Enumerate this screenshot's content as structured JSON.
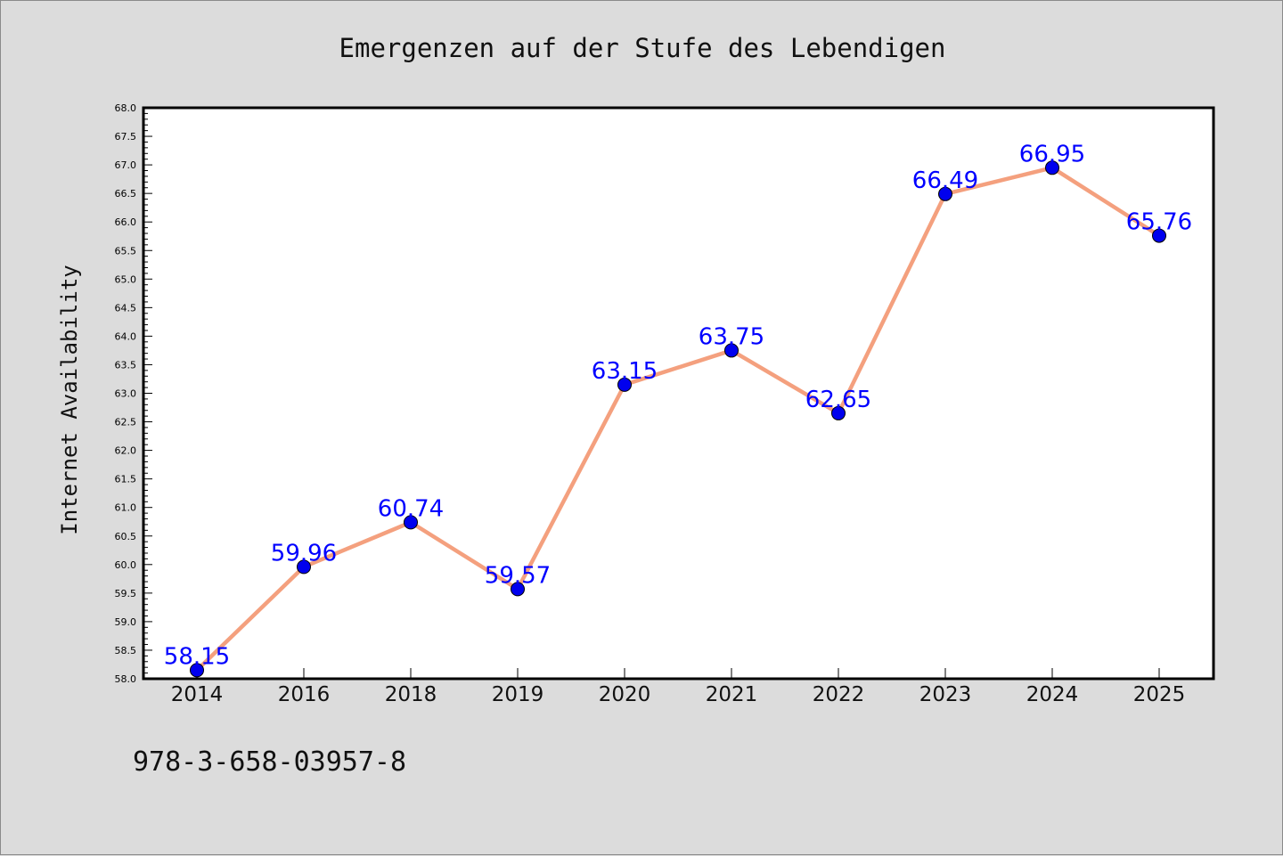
{
  "chart_data": {
    "type": "line",
    "title": "Emergenzen auf der Stufe des Lebendigen",
    "xlabel": "",
    "ylabel": "Internet Availability",
    "categories": [
      "2014",
      "2016",
      "2018",
      "2019",
      "2020",
      "2021",
      "2022",
      "2023",
      "2024",
      "2025"
    ],
    "series": [
      {
        "values": [
          58.15,
          59.96,
          60.74,
          59.57,
          63.15,
          63.75,
          62.65,
          66.49,
          66.95,
          65.76
        ],
        "data_labels": [
          "58.15",
          "59.96",
          "60.74",
          "59.57",
          "63.15",
          "63.75",
          "62.65",
          "66.49",
          "66.95",
          "65.76"
        ],
        "line_color": "#f4a07e",
        "marker_color": "#0000ee"
      }
    ],
    "ylim": [
      58.0,
      68.0
    ],
    "yticks": [
      "58.0",
      "58.5",
      "59.0",
      "59.5",
      "60.0",
      "60.5",
      "61.0",
      "61.5",
      "62.0",
      "62.5",
      "63.0",
      "63.5",
      "64.0",
      "64.5",
      "65.0",
      "65.5",
      "66.0",
      "66.5",
      "67.0",
      "67.5",
      "68.0"
    ],
    "grid": false,
    "legend": "none",
    "label_color": "#0000ff"
  },
  "footer": {
    "text": "978-3-658-03957-8"
  }
}
